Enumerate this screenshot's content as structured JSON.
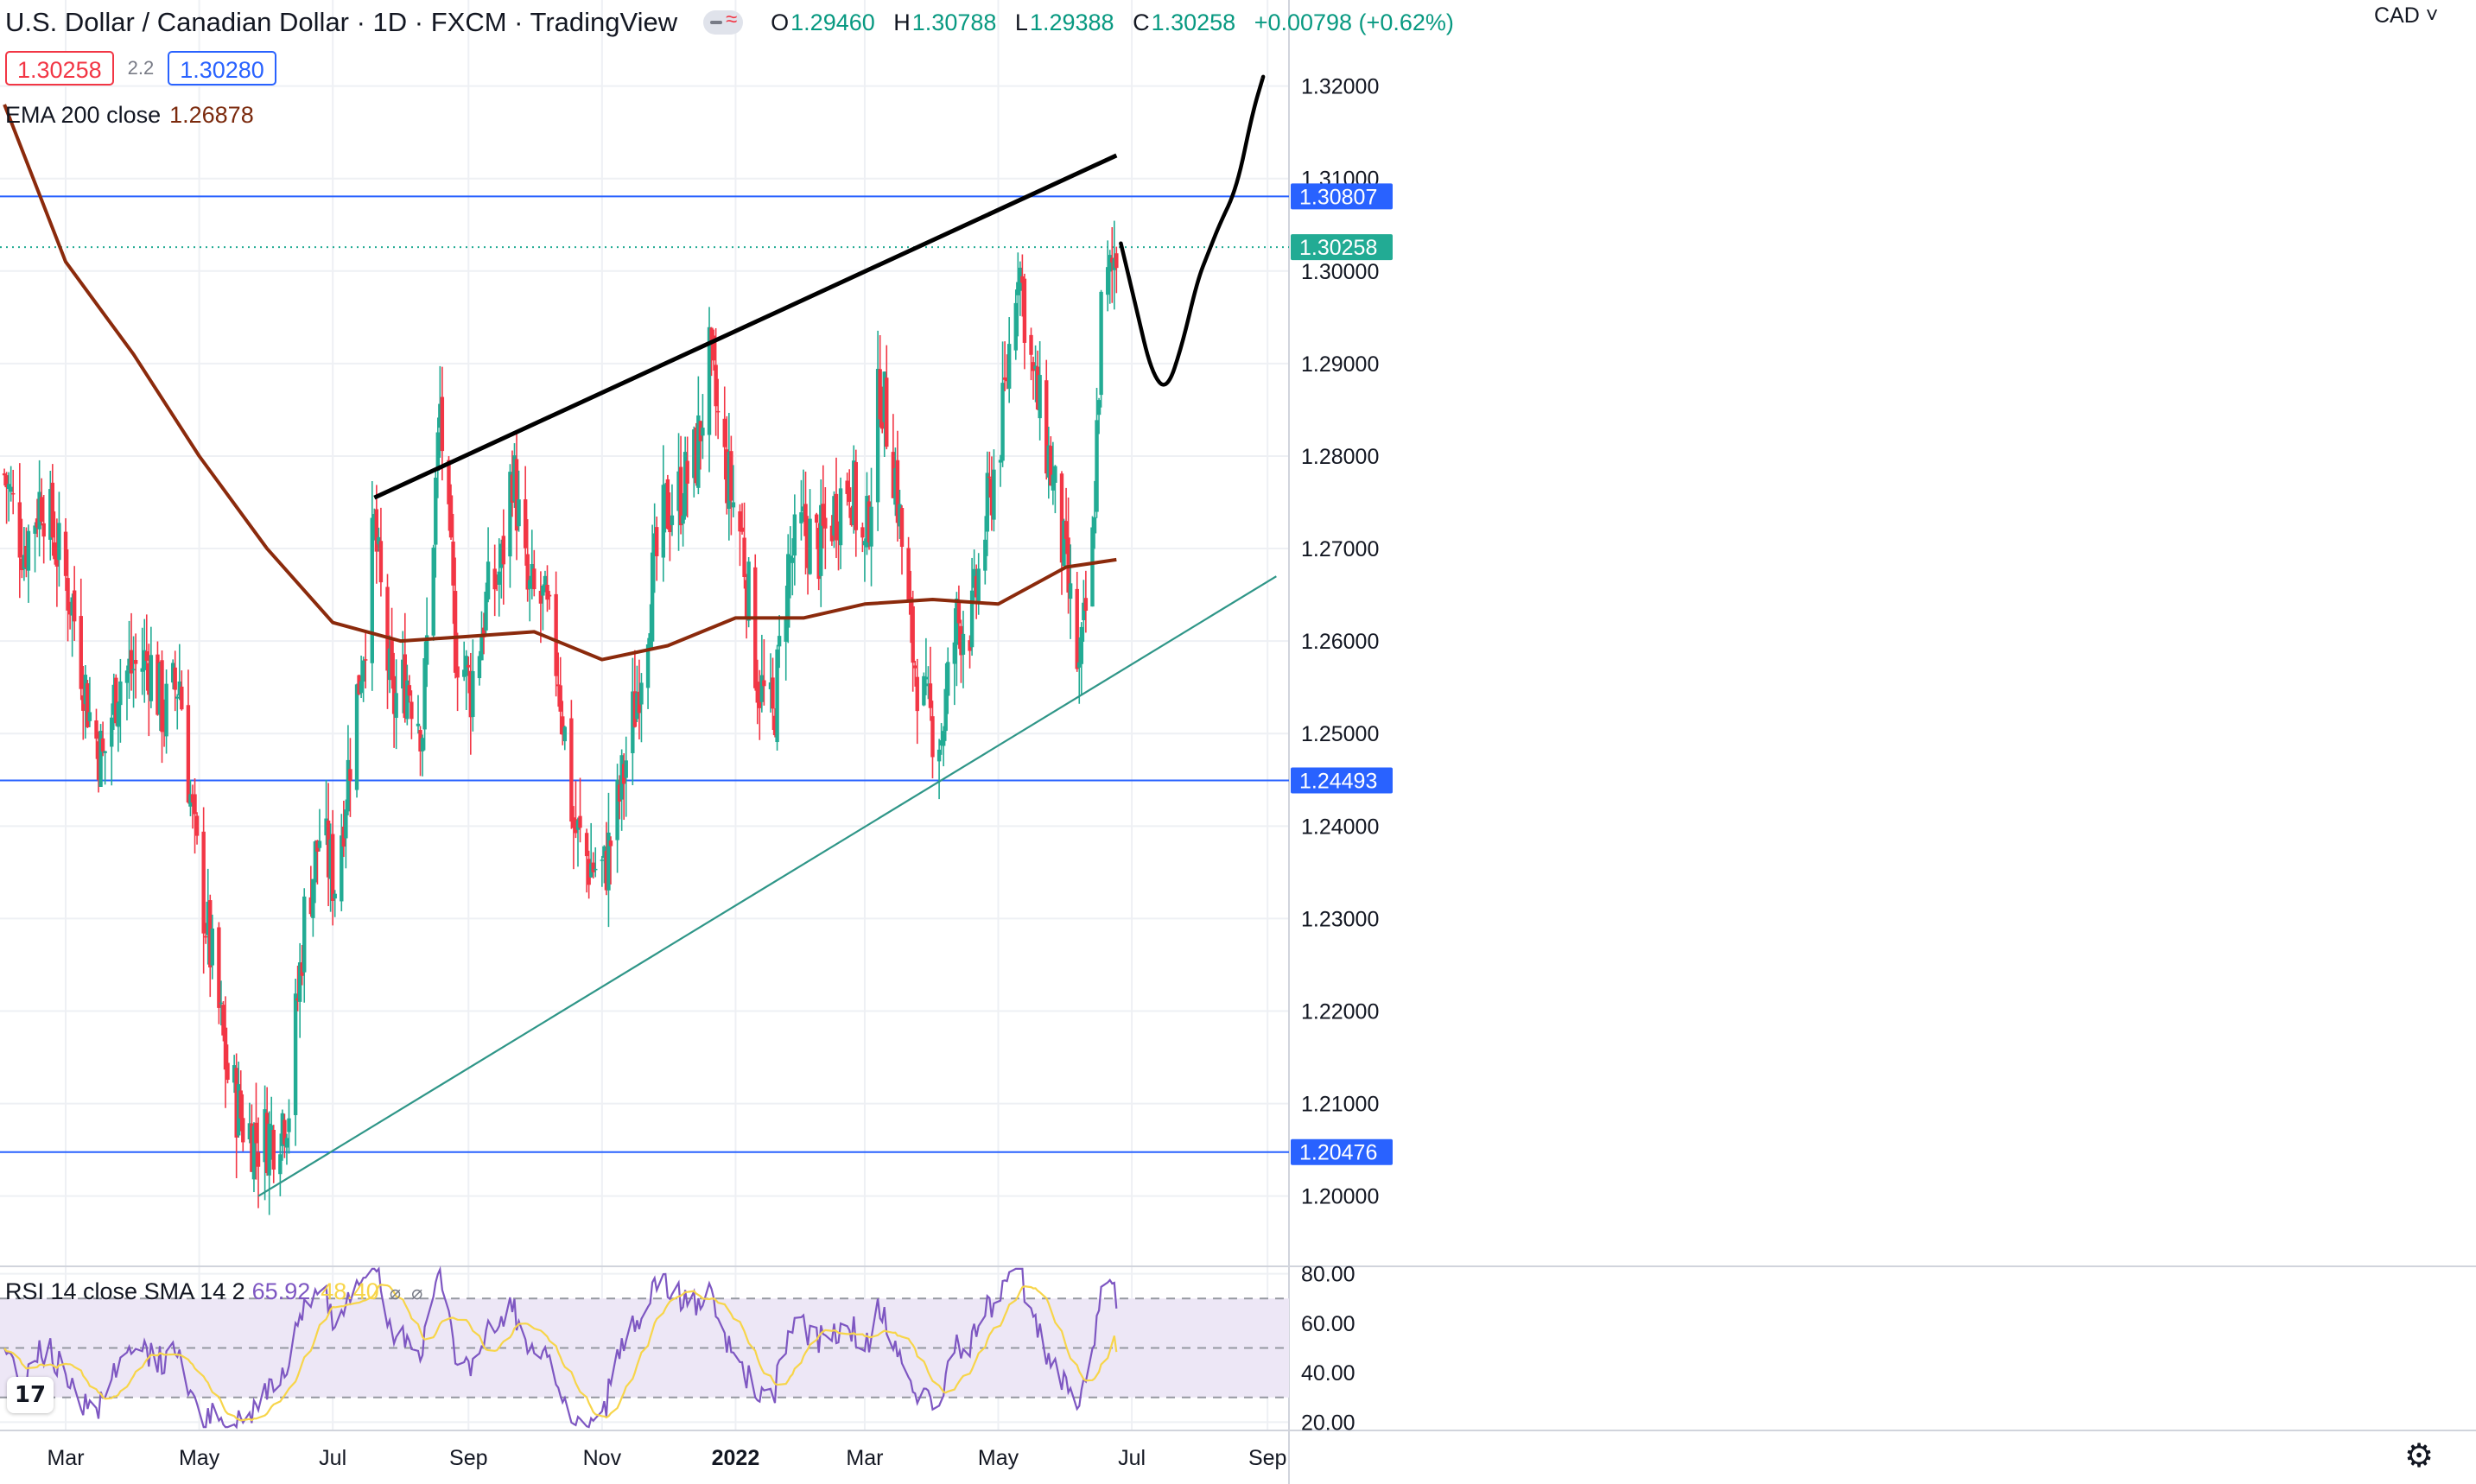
{
  "header": {
    "symbol_title": "U.S. Dollar / Canadian Dollar · 1D · FXCM · TradingView",
    "ohlc": [
      {
        "k": "O",
        "v": "1.29460"
      },
      {
        "k": "H",
        "v": "1.30788"
      },
      {
        "k": "L",
        "v": "1.29388"
      },
      {
        "k": "C",
        "v": "1.30258"
      },
      {
        "k": "",
        "v": "+0.00798 (+0.62%)"
      }
    ]
  },
  "trade": {
    "sell_price": "1.30258",
    "spread": "2.2",
    "buy_price": "1.30280"
  },
  "ema_legend": {
    "name": "EMA 200 close",
    "value": "1.26878"
  },
  "rsi_legend": {
    "name": "RSI 14 close SMA 14 2",
    "rsi_value": "65.92",
    "sma_value": "48.40"
  },
  "currency_label": "CAD ˅",
  "logo_text": "17",
  "colors": {
    "bull": "#22ab94",
    "bear": "#f23645",
    "ema": "#8b2a0c",
    "hline": "#2962ff",
    "support": "#2f9688",
    "resistance": "#000000",
    "rsi": "#7e57c2",
    "rsi_sma": "#f7d54a",
    "rsi_band": "#ede7f6",
    "last_price": "#22ab94"
  },
  "chart_data": {
    "type": "candlestick",
    "price_axis": {
      "ylim": [
        1.1925,
        1.3265
      ],
      "ticks": [
        "1.32000",
        "1.31000",
        "1.30000",
        "1.29000",
        "1.28000",
        "1.27000",
        "1.26000",
        "1.25000",
        "1.24000",
        "1.23000",
        "1.22000",
        "1.21000",
        "1.20000"
      ]
    },
    "x_axis": {
      "ticks": [
        {
          "label": "Mar",
          "date": "2021-03-01"
        },
        {
          "label": "May",
          "date": "2021-05-01"
        },
        {
          "label": "Jul",
          "date": "2021-07-01"
        },
        {
          "label": "Sep",
          "date": "2021-09-01"
        },
        {
          "label": "Nov",
          "date": "2021-11-01"
        },
        {
          "label": "2022",
          "date": "2022-01-01",
          "bold": true
        },
        {
          "label": "Mar",
          "date": "2022-03-01"
        },
        {
          "label": "May",
          "date": "2022-05-01"
        },
        {
          "label": "Jul",
          "date": "2022-07-01"
        },
        {
          "label": "Sep",
          "date": "2022-09-01"
        }
      ]
    },
    "horizontal_lines": [
      {
        "value": 1.30807,
        "label": "1.30807"
      },
      {
        "value": 1.24493,
        "label": "1.24493"
      },
      {
        "value": 1.20476,
        "label": "1.20476"
      }
    ],
    "last_price": {
      "value": 1.30258,
      "label": "1.30258"
    },
    "close_path": [
      [
        "2021-02-01",
        1.278
      ],
      [
        "2021-02-10",
        1.27
      ],
      [
        "2021-02-18",
        1.276
      ],
      [
        "2021-02-25",
        1.27
      ],
      [
        "2021-03-04",
        1.264
      ],
      [
        "2021-03-12",
        1.252
      ],
      [
        "2021-03-18",
        1.247
      ],
      [
        "2021-03-25",
        1.256
      ],
      [
        "2021-04-01",
        1.257
      ],
      [
        "2021-04-08",
        1.258
      ],
      [
        "2021-04-15",
        1.252
      ],
      [
        "2021-04-22",
        1.256
      ],
      [
        "2021-04-29",
        1.238
      ],
      [
        "2021-05-07",
        1.225
      ],
      [
        "2021-05-14",
        1.213
      ],
      [
        "2021-05-21",
        1.208
      ],
      [
        "2021-05-28",
        1.206
      ],
      [
        "2021-06-04",
        1.207
      ],
      [
        "2021-06-11",
        1.21
      ],
      [
        "2021-06-18",
        1.23
      ],
      [
        "2021-06-25",
        1.239
      ],
      [
        "2021-07-02",
        1.234
      ],
      [
        "2021-07-09",
        1.248
      ],
      [
        "2021-07-16",
        1.262
      ],
      [
        "2021-07-20",
        1.272
      ],
      [
        "2021-07-28",
        1.253
      ],
      [
        "2021-08-04",
        1.256
      ],
      [
        "2021-08-11",
        1.251
      ],
      [
        "2021-08-19",
        1.285
      ],
      [
        "2021-08-26",
        1.26
      ],
      [
        "2021-09-02",
        1.255
      ],
      [
        "2021-09-09",
        1.264
      ],
      [
        "2021-09-16",
        1.268
      ],
      [
        "2021-09-21",
        1.279
      ],
      [
        "2021-09-28",
        1.265
      ],
      [
        "2021-10-05",
        1.264
      ],
      [
        "2021-10-12",
        1.257
      ],
      [
        "2021-10-19",
        1.24
      ],
      [
        "2021-10-26",
        1.236
      ],
      [
        "2021-11-02",
        1.235
      ],
      [
        "2021-11-09",
        1.243
      ],
      [
        "2021-11-16",
        1.253
      ],
      [
        "2021-11-23",
        1.265
      ],
      [
        "2021-11-30",
        1.274
      ],
      [
        "2021-12-07",
        1.276
      ],
      [
        "2021-12-14",
        1.28
      ],
      [
        "2021-12-20",
        1.29
      ],
      [
        "2021-12-27",
        1.279
      ],
      [
        "2022-01-04",
        1.271
      ],
      [
        "2022-01-11",
        1.256
      ],
      [
        "2022-01-18",
        1.251
      ],
      [
        "2022-01-25",
        1.268
      ],
      [
        "2022-02-01",
        1.272
      ],
      [
        "2022-02-08",
        1.27
      ],
      [
        "2022-02-15",
        1.274
      ],
      [
        "2022-02-22",
        1.278
      ],
      [
        "2022-03-01",
        1.269
      ],
      [
        "2022-03-08",
        1.288
      ],
      [
        "2022-03-15",
        1.278
      ],
      [
        "2022-03-22",
        1.26
      ],
      [
        "2022-03-29",
        1.252
      ],
      [
        "2022-04-05",
        1.25
      ],
      [
        "2022-04-12",
        1.262
      ],
      [
        "2022-04-19",
        1.262
      ],
      [
        "2022-04-26",
        1.274
      ],
      [
        "2022-05-03",
        1.284
      ],
      [
        "2022-05-10",
        1.302
      ],
      [
        "2022-05-17",
        1.288
      ],
      [
        "2022-05-24",
        1.28
      ],
      [
        "2022-05-31",
        1.269
      ],
      [
        "2022-06-07",
        1.256
      ],
      [
        "2022-06-13",
        1.27
      ],
      [
        "2022-06-17",
        1.295
      ],
      [
        "2022-06-24",
        1.3026
      ]
    ],
    "ema200_path": [
      [
        "2021-02-01",
        1.318
      ],
      [
        "2021-03-01",
        1.301
      ],
      [
        "2021-04-01",
        1.291
      ],
      [
        "2021-05-01",
        1.28
      ],
      [
        "2021-06-01",
        1.27
      ],
      [
        "2021-07-01",
        1.262
      ],
      [
        "2021-08-01",
        1.26
      ],
      [
        "2021-09-01",
        1.2605
      ],
      [
        "2021-10-01",
        1.261
      ],
      [
        "2021-11-01",
        1.258
      ],
      [
        "2021-12-01",
        1.2595
      ],
      [
        "2022-01-01",
        1.2625
      ],
      [
        "2022-02-01",
        1.2625
      ],
      [
        "2022-03-01",
        1.264
      ],
      [
        "2022-04-01",
        1.2645
      ],
      [
        "2022-05-01",
        1.264
      ],
      [
        "2022-06-01",
        1.268
      ],
      [
        "2022-06-24",
        1.2688
      ]
    ],
    "trendlines": [
      {
        "name": "resistance",
        "from": [
          "2021-07-20",
          1.2755
        ],
        "to": [
          "2022-06-24",
          1.3125
        ]
      },
      {
        "name": "support",
        "from": [
          "2021-05-28",
          1.2
        ],
        "to": [
          "2022-09-05",
          1.267
        ]
      }
    ],
    "projection_path": [
      [
        "2022-06-26",
        1.303
      ],
      [
        "2022-07-03",
        1.296
      ],
      [
        "2022-07-10",
        1.289
      ],
      [
        "2022-07-17",
        1.287
      ],
      [
        "2022-07-24",
        1.292
      ],
      [
        "2022-07-31",
        1.299
      ],
      [
        "2022-08-05",
        1.302
      ],
      [
        "2022-08-10",
        1.305
      ],
      [
        "2022-08-18",
        1.309
      ],
      [
        "2022-08-25",
        1.317
      ],
      [
        "2022-08-30",
        1.321
      ]
    ],
    "rsi": {
      "ylim": [
        17,
        83
      ],
      "ticks": [
        "80.00",
        "60.00",
        "40.00",
        "20.00"
      ],
      "bands": {
        "upper": 70,
        "middle": 50,
        "lower": 30
      },
      "value": 65.92,
      "sma_value": 48.4
    }
  }
}
